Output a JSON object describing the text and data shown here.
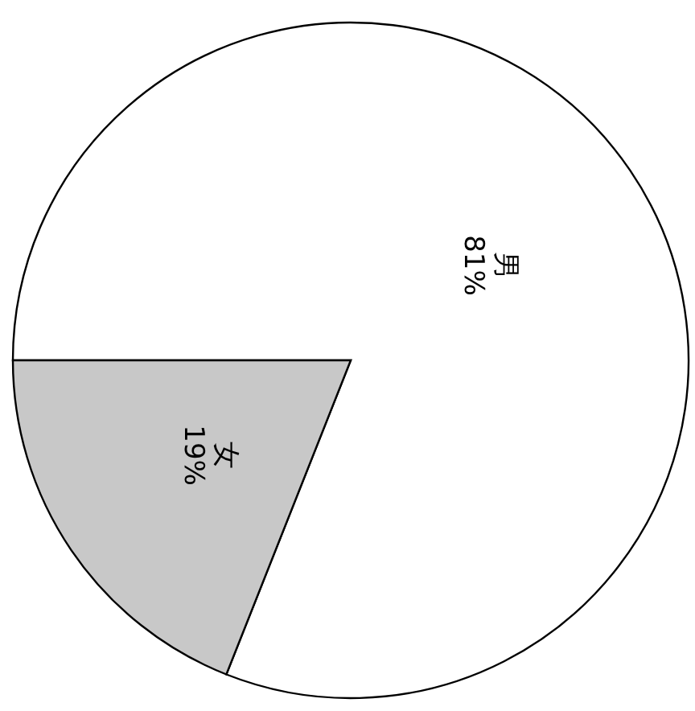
{
  "chart_data": {
    "type": "pie",
    "categories": [
      "男",
      "女"
    ],
    "values": [
      81,
      19
    ],
    "colors": [
      "#ffffff",
      "#c8c8c8"
    ],
    "value_labels": [
      "81%",
      "19%"
    ]
  }
}
